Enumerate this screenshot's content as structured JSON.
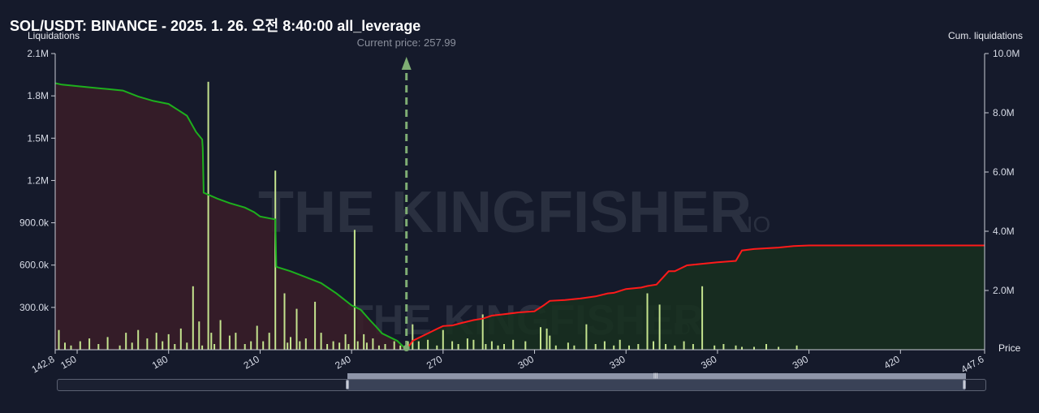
{
  "header": {
    "title": "SOL/USDT: BINANCE - 2025. 1. 26. 오전 8:40:00 all_leverage"
  },
  "watermark": {
    "brand": "THE KINGFISHER",
    "suffix": ".IO"
  },
  "colors": {
    "background": "#151a2b",
    "long_cum_line": "#1db01d",
    "short_cum_line": "#ff1a1a",
    "long_area": "#3a1d28",
    "short_area": "#17301f",
    "bar": "#c4e38e",
    "current_price_marker": "#7fae74",
    "axis": "#c9ccd6"
  },
  "chart_data": {
    "type": "bar",
    "current_price": 257.99,
    "current_price_label": "Current price: 257.99",
    "x_axis": {
      "label": "Price",
      "range": [
        142.8,
        447.6
      ],
      "ticks": [
        "142.8",
        "150",
        "180",
        "210",
        "240",
        "270",
        "300",
        "330",
        "360",
        "390",
        "420",
        "447.6"
      ],
      "tick_values": [
        142.8,
        150,
        180,
        210,
        240,
        270,
        300,
        330,
        360,
        390,
        420,
        447.6
      ]
    },
    "y_left": {
      "label": "Liquidations",
      "range": [
        0,
        2100000
      ],
      "ticks": [
        "2.1M",
        "1.8M",
        "1.5M",
        "1.2M",
        "900.0k",
        "600.0k",
        "300.0k"
      ],
      "tick_values": [
        2100000,
        1800000,
        1500000,
        1200000,
        900000,
        600000,
        300000
      ]
    },
    "y_right": {
      "label": "Cum. liquidations",
      "range": [
        0,
        10000000
      ],
      "ticks": [
        "10.0M",
        "8.0M",
        "6.0M",
        "4.0M",
        "2.0M"
      ],
      "tick_values": [
        10000000,
        8000000,
        6000000,
        4000000,
        2000000
      ]
    },
    "bars": {
      "x": [
        144,
        146,
        148,
        151,
        154,
        157,
        160,
        164,
        166,
        168,
        170,
        173,
        176,
        178,
        180,
        182,
        184,
        186,
        188,
        190,
        191,
        193,
        194,
        195,
        197,
        200,
        202,
        205,
        207,
        209,
        211,
        213,
        215,
        218,
        219,
        220,
        222,
        223,
        225,
        228,
        230,
        232,
        234,
        236,
        238,
        239,
        241,
        242,
        244,
        245,
        247,
        249,
        251,
        254,
        256,
        258.5,
        260,
        262,
        265,
        268,
        270,
        273,
        275,
        278,
        280,
        283,
        284,
        286,
        288,
        290,
        293,
        297,
        302,
        304,
        305,
        307,
        311,
        313,
        317,
        320,
        323,
        326,
        328,
        331,
        334,
        337,
        339,
        341,
        343,
        346,
        349,
        352,
        355,
        359,
        362,
        366,
        368,
        372,
        376,
        380,
        386
      ],
      "values": [
        140000,
        50000,
        30000,
        60000,
        80000,
        40000,
        90000,
        30000,
        120000,
        50000,
        140000,
        80000,
        120000,
        60000,
        110000,
        40000,
        150000,
        50000,
        450000,
        200000,
        30000,
        1900000,
        120000,
        40000,
        210000,
        100000,
        120000,
        40000,
        60000,
        170000,
        60000,
        120000,
        1270000,
        400000,
        50000,
        90000,
        290000,
        60000,
        80000,
        340000,
        120000,
        40000,
        60000,
        50000,
        110000,
        40000,
        850000,
        60000,
        110000,
        50000,
        80000,
        30000,
        40000,
        60000,
        30000,
        60000,
        180000,
        60000,
        70000,
        30000,
        140000,
        60000,
        40000,
        80000,
        70000,
        250000,
        40000,
        60000,
        30000,
        40000,
        70000,
        60000,
        160000,
        150000,
        100000,
        30000,
        50000,
        30000,
        180000,
        40000,
        60000,
        30000,
        70000,
        30000,
        40000,
        400000,
        60000,
        320000,
        40000,
        30000,
        60000,
        40000,
        450000,
        30000,
        40000,
        30000,
        20000,
        20000,
        40000,
        20000,
        30000
      ]
    },
    "series": [
      {
        "side": "long",
        "x": [
          142.8,
          145,
          150,
          155,
          160,
          165,
          170,
          175,
          180,
          183,
          186,
          189,
          191,
          191.2,
          191.5,
          196,
          200,
          205,
          208,
          210,
          215,
          215.3,
          220,
          225,
          230,
          235,
          240,
          243,
          246,
          248,
          250,
          255,
          257.99
        ],
        "values": [
          9000000,
          8950000,
          8900000,
          8850000,
          8800000,
          8750000,
          8550000,
          8400000,
          8300000,
          8100000,
          7900000,
          7350000,
          7100000,
          6800000,
          5300000,
          5100000,
          4950000,
          4800000,
          4650000,
          4500000,
          4400000,
          2800000,
          2650000,
          2450000,
          2250000,
          1900000,
          1500000,
          1350000,
          1000000,
          780000,
          550000,
          300000,
          0
        ]
      },
      {
        "side": "short",
        "x": [
          257.99,
          260,
          262,
          265,
          268,
          270,
          273,
          276,
          280,
          283,
          286,
          290,
          295,
          300,
          303,
          305,
          310,
          315,
          320,
          324,
          326,
          330,
          335,
          337,
          340,
          344,
          346,
          350,
          355,
          360,
          366,
          368,
          372,
          380,
          385,
          390,
          400,
          420,
          447.6
        ],
        "values": [
          0,
          300000,
          400000,
          550000,
          700000,
          800000,
          820000,
          900000,
          1000000,
          1050000,
          1150000,
          1200000,
          1260000,
          1300000,
          1500000,
          1650000,
          1680000,
          1730000,
          1800000,
          1900000,
          1920000,
          2050000,
          2100000,
          2150000,
          2200000,
          2650000,
          2650000,
          2850000,
          2900000,
          2950000,
          3000000,
          3350000,
          3400000,
          3450000,
          3500000,
          3520000,
          3520000,
          3520000,
          3520000
        ]
      }
    ]
  }
}
